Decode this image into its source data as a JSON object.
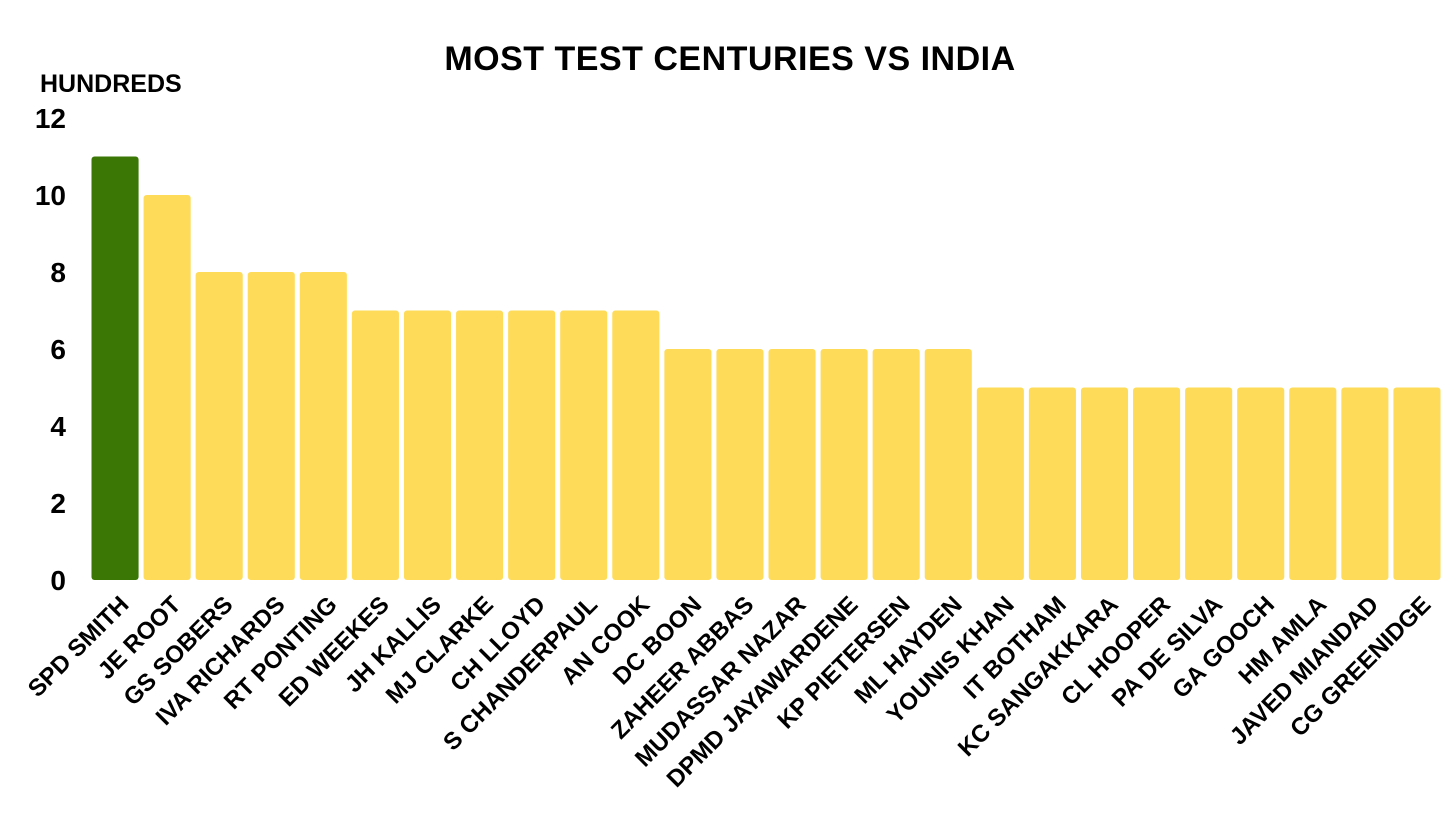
{
  "chart_data": {
    "type": "bar",
    "title": "MOST TEST CENTURIES VS INDIA",
    "ylabel": "HUNDREDS",
    "xlabel": "",
    "ylim": [
      0,
      12
    ],
    "yticks": [
      0,
      2,
      4,
      6,
      8,
      10,
      12
    ],
    "grid": false,
    "categories": [
      "SPD SMITH",
      "JE ROOT",
      "GS SOBERS",
      "IVA RICHARDS",
      "RT PONTING",
      "ED WEEKES",
      "JH KALLIS",
      "MJ CLARKE",
      "CH LLOYD",
      "S CHANDERPAUL",
      "AN COOK",
      "DC BOON",
      "ZAHEER ABBAS",
      "MUDASSAR NAZAR",
      "DPMD JAYAWARDENE",
      "KP PIETERSEN",
      "ML HAYDEN",
      "YOUNIS KHAN",
      "IT BOTHAM",
      "KC SANGAKKARA",
      "CL HOOPER",
      "PA DE SILVA",
      "GA GOOCH",
      "HM AMLA",
      "JAVED MIANDAD",
      "CG GREENIDGE"
    ],
    "values": [
      11,
      10,
      8,
      8,
      8,
      7,
      7,
      7,
      7,
      7,
      7,
      6,
      6,
      6,
      6,
      6,
      6,
      5,
      5,
      5,
      5,
      5,
      5,
      5,
      5,
      5
    ],
    "highlight_index": 0,
    "colors": {
      "highlight": "#3a7705",
      "default": "#fedc5a"
    }
  }
}
